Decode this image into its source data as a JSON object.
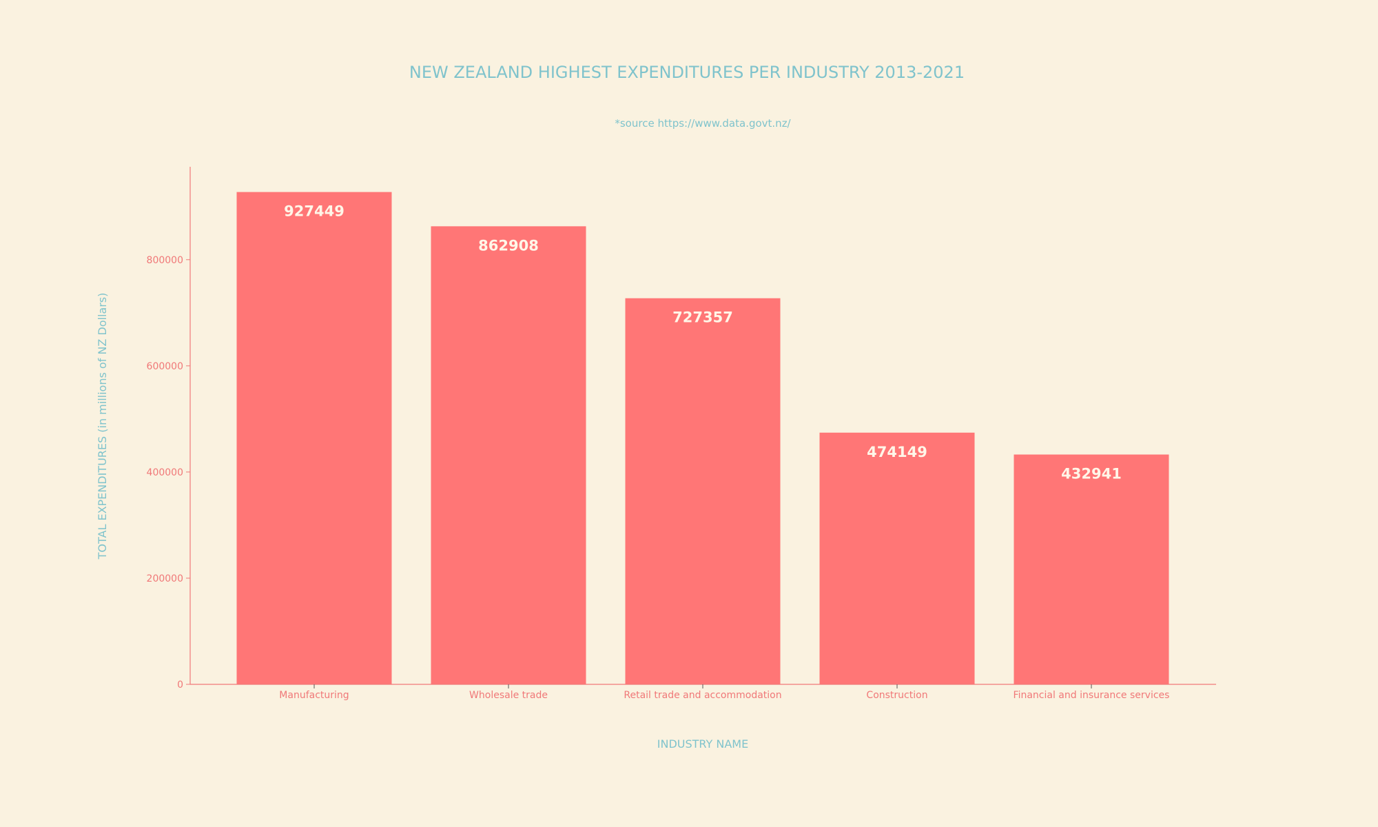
{
  "chart_data": {
    "type": "bar",
    "title": "NEW ZEALAND HIGHEST EXPENDITURES PER INDUSTRY 2013-2021",
    "subtitle": "*source https://www.data.govt.nz/",
    "xlabel": "INDUSTRY NAME",
    "ylabel": "TOTAL EXPENDITURES (in millions of NZ Dollars)",
    "categories": [
      "Manufacturing",
      "Wholesale trade",
      "Retail trade and accommodation",
      "Construction",
      "Financial and insurance services"
    ],
    "values": [
      927449,
      862908,
      727357,
      474149,
      432941
    ],
    "ylim": [
      0,
      975000
    ],
    "yticks": [
      0,
      200000,
      400000,
      600000,
      800000
    ],
    "grid": false,
    "legend": "none",
    "colors": {
      "bar": "#FF7676",
      "background": "#FAF2E0",
      "axis": "#F07878",
      "title": "#7FC3CC",
      "data_label": "#FFF6E8"
    }
  }
}
